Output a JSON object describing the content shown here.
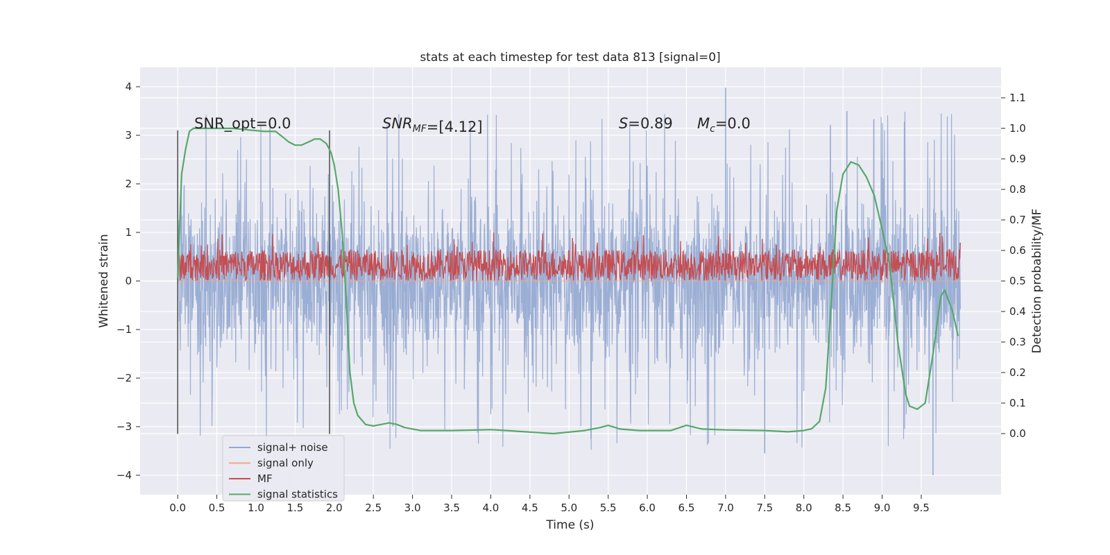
{
  "chart_data": {
    "type": "line",
    "title": "stats at each timestep for test data 813 [signal=0]",
    "xlabel": "Time (s)",
    "ylabel": "Whitened strain",
    "ylabel_right": "Detection probability/MF",
    "xlim": [
      -0.48,
      10.52
    ],
    "ylim": [
      -4.4,
      4.4
    ],
    "ylim_right": [
      -0.2,
      1.2
    ],
    "x_ticks": [
      "0.0",
      "0.5",
      "1.0",
      "1.5",
      "2.0",
      "2.5",
      "3.0",
      "3.5",
      "4.0",
      "4.5",
      "5.0",
      "5.5",
      "6.0",
      "6.5",
      "7.0",
      "7.5",
      "8.0",
      "8.5",
      "9.0",
      "9.5"
    ],
    "y_ticks": [
      "4",
      "3",
      "2",
      "1",
      "0",
      "−1",
      "−2",
      "−3",
      "−4"
    ],
    "y_ticks_right": [
      "1.1",
      "1.0",
      "0.9",
      "0.8",
      "0.7",
      "0.6",
      "0.5",
      "0.4",
      "0.3",
      "0.2",
      "0.1",
      "0.0"
    ],
    "grid": true,
    "legend_position": "lower-left",
    "annotations": {
      "snr_opt": "SNR_opt=0.0",
      "snr_mf_main": "SNR",
      "snr_mf_sub": "MF",
      "snr_mf_value": "=[4.12]",
      "s_label": "S",
      "s_value": "=0.89",
      "mc_main": "M",
      "mc_sub": "c",
      "mc_value": "=0.0"
    },
    "vertical_markers_x": [
      0.0,
      1.94
    ],
    "noise_envelope": {
      "x_range": [
        0.0,
        10.0
      ],
      "typical_abs": 1.2,
      "peak_max": 3.98,
      "peak_min": -4.0
    },
    "mf_band": {
      "x_range": [
        0.0,
        10.0
      ],
      "low": 0.0,
      "high": 0.65,
      "peak": 1.0
    },
    "series": [
      {
        "name": "signal+ noise",
        "color": "#92a7d0",
        "axis": "left",
        "style": "dense noise"
      },
      {
        "name": "signal only",
        "color": "#e9a98c",
        "axis": "left",
        "style": "flat zero"
      },
      {
        "name": "MF",
        "color": "#c44e52",
        "axis": "left",
        "style": "dense band"
      },
      {
        "name": "signal statistics",
        "color": "#55a868",
        "axis": "right",
        "x": [
          0.0,
          0.05,
          0.1,
          0.15,
          0.2,
          0.3,
          0.5,
          0.7,
          0.9,
          1.1,
          1.25,
          1.35,
          1.42,
          1.5,
          1.58,
          1.67,
          1.75,
          1.82,
          1.9,
          1.96,
          2.0,
          2.05,
          2.1,
          2.15,
          2.2,
          2.25,
          2.3,
          2.4,
          2.5,
          2.6,
          2.7,
          2.8,
          2.9,
          3.1,
          3.5,
          4.0,
          4.2,
          4.5,
          4.8,
          5.2,
          5.4,
          5.5,
          5.65,
          5.9,
          6.3,
          6.5,
          6.7,
          7.0,
          7.5,
          7.8,
          8.0,
          8.1,
          8.2,
          8.28,
          8.35,
          8.42,
          8.5,
          8.6,
          8.7,
          8.8,
          8.9,
          9.0,
          9.1,
          9.2,
          9.3,
          9.35,
          9.45,
          9.55,
          9.65,
          9.75,
          9.8,
          9.9,
          9.97
        ],
        "y": [
          0.51,
          0.85,
          0.93,
          0.99,
          1.0,
          1.0,
          1.0,
          1.0,
          0.995,
          0.99,
          0.99,
          0.97,
          0.955,
          0.945,
          0.945,
          0.955,
          0.965,
          0.965,
          0.95,
          0.92,
          0.88,
          0.8,
          0.66,
          0.45,
          0.2,
          0.1,
          0.06,
          0.03,
          0.025,
          0.03,
          0.035,
          0.03,
          0.02,
          0.01,
          0.01,
          0.013,
          0.01,
          0.005,
          0.0,
          0.01,
          0.02,
          0.027,
          0.015,
          0.01,
          0.01,
          0.027,
          0.015,
          0.012,
          0.01,
          0.006,
          0.01,
          0.016,
          0.04,
          0.15,
          0.43,
          0.73,
          0.85,
          0.89,
          0.88,
          0.84,
          0.78,
          0.67,
          0.55,
          0.3,
          0.13,
          0.09,
          0.08,
          0.1,
          0.26,
          0.45,
          0.47,
          0.4,
          0.32
        ]
      }
    ]
  }
}
